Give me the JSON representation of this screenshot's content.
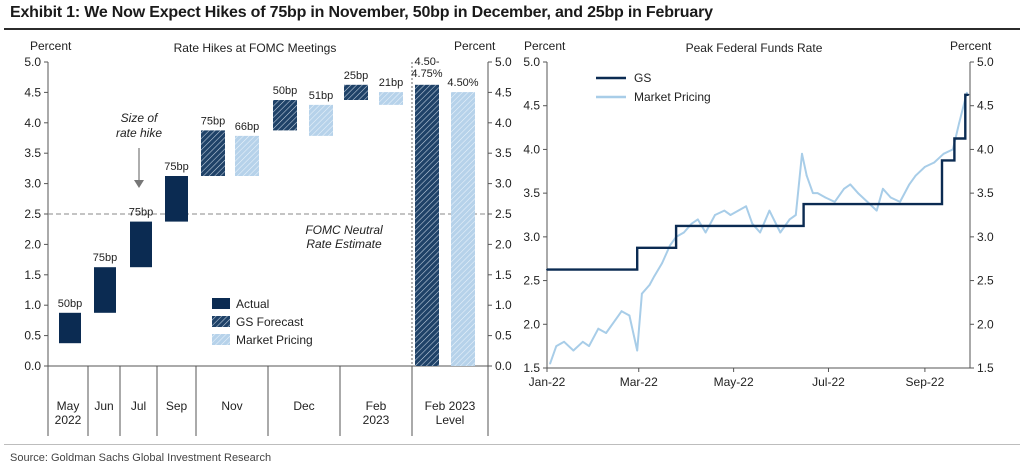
{
  "exhibit_title": "Exhibit 1: We Now Expect Hikes of 75bp in November, 50bp in December, and 25bp in February",
  "source": "Source: Goldman Sachs Global Investment Research",
  "colors": {
    "actual": "#0b2b52",
    "gs_forecast": "#1f4268",
    "market": "#b6d2ea",
    "gs_line": "#0b2b52",
    "market_line": "#a8cde8",
    "neutral_line": "#8a8a8a"
  },
  "chart_data": [
    {
      "type": "bar",
      "subtype": "waterfall",
      "title": "Rate Hikes at FOMC Meetings",
      "ylabel_left": "Percent",
      "ylabel_right": "Percent",
      "ylim": [
        0,
        5
      ],
      "yticks": [
        "0.0",
        "0.5",
        "1.0",
        "1.5",
        "2.0",
        "2.5",
        "3.0",
        "3.5",
        "4.0",
        "4.5",
        "5.0"
      ],
      "categories": [
        "May\n2022",
        "Jun",
        "Jul",
        "Sep",
        "Nov",
        "Dec",
        "Feb\n2023",
        "Feb 2023\nLevel"
      ],
      "legend": [
        "Actual",
        "GS Forecast",
        "Market Pricing"
      ],
      "bars": [
        {
          "category": "May\n2022",
          "series": "Actual",
          "start": 0.375,
          "end": 0.875,
          "label": "50bp"
        },
        {
          "category": "Jun",
          "series": "Actual",
          "start": 0.875,
          "end": 1.625,
          "label": "75bp"
        },
        {
          "category": "Jul",
          "series": "Actual",
          "start": 1.625,
          "end": 2.375,
          "label": "75bp"
        },
        {
          "category": "Sep",
          "series": "Actual",
          "start": 2.375,
          "end": 3.125,
          "label": "75bp"
        },
        {
          "category": "Nov",
          "series": "GS Forecast",
          "start": 3.125,
          "end": 3.875,
          "label": "75bp"
        },
        {
          "category": "Nov",
          "series": "Market Pricing",
          "start": 3.125,
          "end": 3.785,
          "label": "66bp"
        },
        {
          "category": "Dec",
          "series": "GS Forecast",
          "start": 3.875,
          "end": 4.375,
          "label": "50bp"
        },
        {
          "category": "Dec",
          "series": "Market Pricing",
          "start": 3.785,
          "end": 4.295,
          "label": "51bp"
        },
        {
          "category": "Feb\n2023",
          "series": "GS Forecast",
          "start": 4.375,
          "end": 4.625,
          "label": "25bp"
        },
        {
          "category": "Feb\n2023",
          "series": "Market Pricing",
          "start": 4.295,
          "end": 4.505,
          "label": "21bp"
        },
        {
          "category": "Feb 2023\nLevel",
          "series": "GS Forecast",
          "start": 0,
          "end": 4.625,
          "label": "4.50-\n4.75%"
        },
        {
          "category": "Feb 2023\nLevel",
          "series": "Market Pricing",
          "start": 0,
          "end": 4.505,
          "label": "4.50%"
        }
      ],
      "reference_line": {
        "y": 2.5,
        "label": "FOMC Neutral\nRate Estimate"
      },
      "annotation": "Size of\nrate hike",
      "grid": false
    },
    {
      "type": "line",
      "title": "Peak Federal Funds Rate",
      "ylabel_left": "Percent",
      "ylabel_right": "Percent",
      "ylim": [
        1.5,
        5.0
      ],
      "yticks": [
        "1.5",
        "2.0",
        "2.5",
        "3.0",
        "3.5",
        "4.0",
        "4.5",
        "5.0"
      ],
      "xticks": [
        "Jan-22",
        "Mar-22",
        "May-22",
        "Jul-22",
        "Sep-22"
      ],
      "xrange": [
        "2022-01-01",
        "2022-09-30"
      ],
      "grid": false,
      "legend_position": "top-left",
      "series": [
        {
          "name": "GS",
          "x": [
            "2022-01-01",
            "2022-02-28",
            "2022-02-28",
            "2022-03-25",
            "2022-03-25",
            "2022-06-15",
            "2022-06-15",
            "2022-09-12",
            "2022-09-12",
            "2022-09-20",
            "2022-09-20",
            "2022-09-27",
            "2022-09-27",
            "2022-09-29"
          ],
          "y": [
            2.625,
            2.625,
            2.875,
            2.875,
            3.125,
            3.125,
            3.375,
            3.375,
            3.875,
            3.875,
            4.125,
            4.125,
            4.625,
            4.625
          ]
        },
        {
          "name": "Market Pricing",
          "x": [
            "2022-01-03",
            "2022-01-07",
            "2022-01-12",
            "2022-01-18",
            "2022-01-24",
            "2022-01-28",
            "2022-02-03",
            "2022-02-08",
            "2022-02-14",
            "2022-02-18",
            "2022-02-23",
            "2022-02-28",
            "2022-03-03",
            "2022-03-08",
            "2022-03-11",
            "2022-03-16",
            "2022-03-21",
            "2022-03-25",
            "2022-03-30",
            "2022-04-04",
            "2022-04-08",
            "2022-04-13",
            "2022-04-19",
            "2022-04-25",
            "2022-04-29",
            "2022-05-04",
            "2022-05-09",
            "2022-05-13",
            "2022-05-18",
            "2022-05-24",
            "2022-05-31",
            "2022-06-06",
            "2022-06-10",
            "2022-06-14",
            "2022-06-17",
            "2022-06-21",
            "2022-06-24",
            "2022-06-29",
            "2022-07-05",
            "2022-07-11",
            "2022-07-15",
            "2022-07-20",
            "2022-07-26",
            "2022-08-01",
            "2022-08-05",
            "2022-08-10",
            "2022-08-16",
            "2022-08-22",
            "2022-08-26",
            "2022-09-01",
            "2022-09-07",
            "2022-09-13",
            "2022-09-19",
            "2022-09-23",
            "2022-09-28"
          ],
          "y": [
            1.55,
            1.75,
            1.8,
            1.7,
            1.8,
            1.75,
            1.95,
            1.9,
            2.05,
            2.15,
            2.1,
            1.7,
            2.35,
            2.45,
            2.55,
            2.7,
            2.9,
            3.0,
            3.05,
            3.15,
            3.2,
            3.05,
            3.25,
            3.3,
            3.25,
            3.3,
            3.35,
            3.15,
            3.05,
            3.3,
            3.05,
            3.2,
            3.25,
            3.95,
            3.7,
            3.5,
            3.5,
            3.45,
            3.4,
            3.55,
            3.6,
            3.5,
            3.4,
            3.3,
            3.55,
            3.45,
            3.4,
            3.6,
            3.7,
            3.8,
            3.85,
            3.95,
            4.0,
            4.3,
            4.65
          ]
        }
      ]
    }
  ]
}
